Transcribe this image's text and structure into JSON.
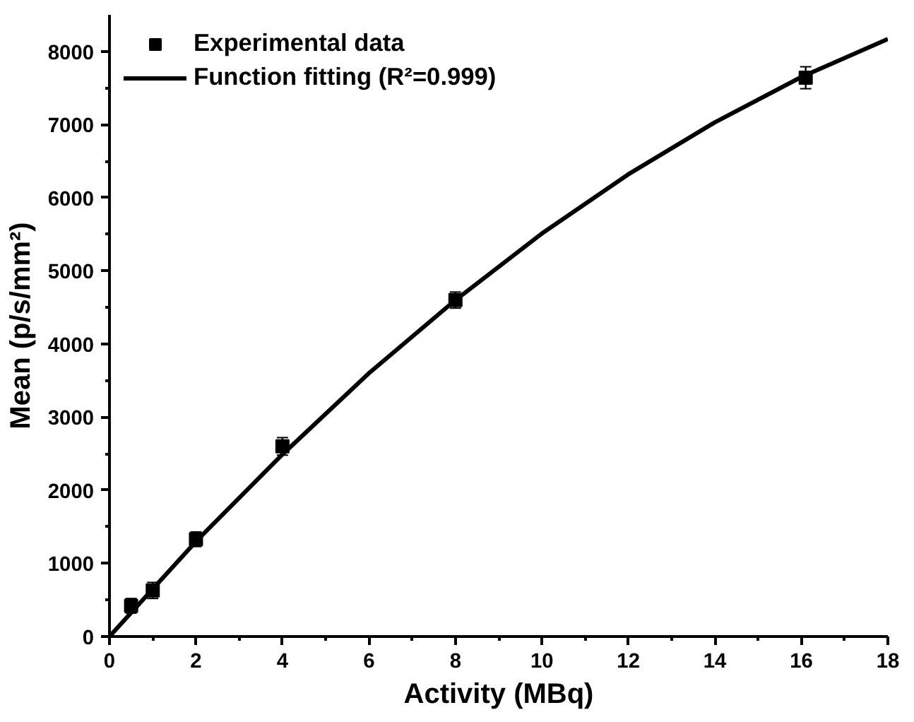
{
  "chart_data": {
    "type": "scatter",
    "xlabel": "Activity (MBq)",
    "ylabel": "Mean (p/s/mm²)",
    "xlim": [
      0,
      18
    ],
    "ylim": [
      0,
      8500
    ],
    "xticks": [
      0,
      2,
      4,
      6,
      8,
      10,
      12,
      14,
      16,
      18
    ],
    "yticks": [
      0,
      1000,
      2000,
      3000,
      4000,
      5000,
      6000,
      7000,
      8000
    ],
    "grid": false,
    "legend": "top left",
    "series": [
      {
        "name": "Experimental data",
        "marker": "square",
        "color": "#000000",
        "x": [
          0.5,
          1,
          2,
          4,
          8,
          16.1
        ],
        "values": [
          420,
          630,
          1330,
          2600,
          4600,
          7640
        ],
        "errors": [
          100,
          110,
          100,
          120,
          110,
          150
        ]
      },
      {
        "name": "Function fitting (R²=0.999)",
        "type": "line",
        "line_style": "solid",
        "color": "#000000",
        "x": [
          0,
          2,
          4,
          6,
          8,
          10,
          12,
          14,
          16,
          18
        ],
        "values": [
          0,
          1300,
          2490,
          3600,
          4600,
          5510,
          6320,
          7030,
          7650,
          8170
        ]
      }
    ]
  }
}
